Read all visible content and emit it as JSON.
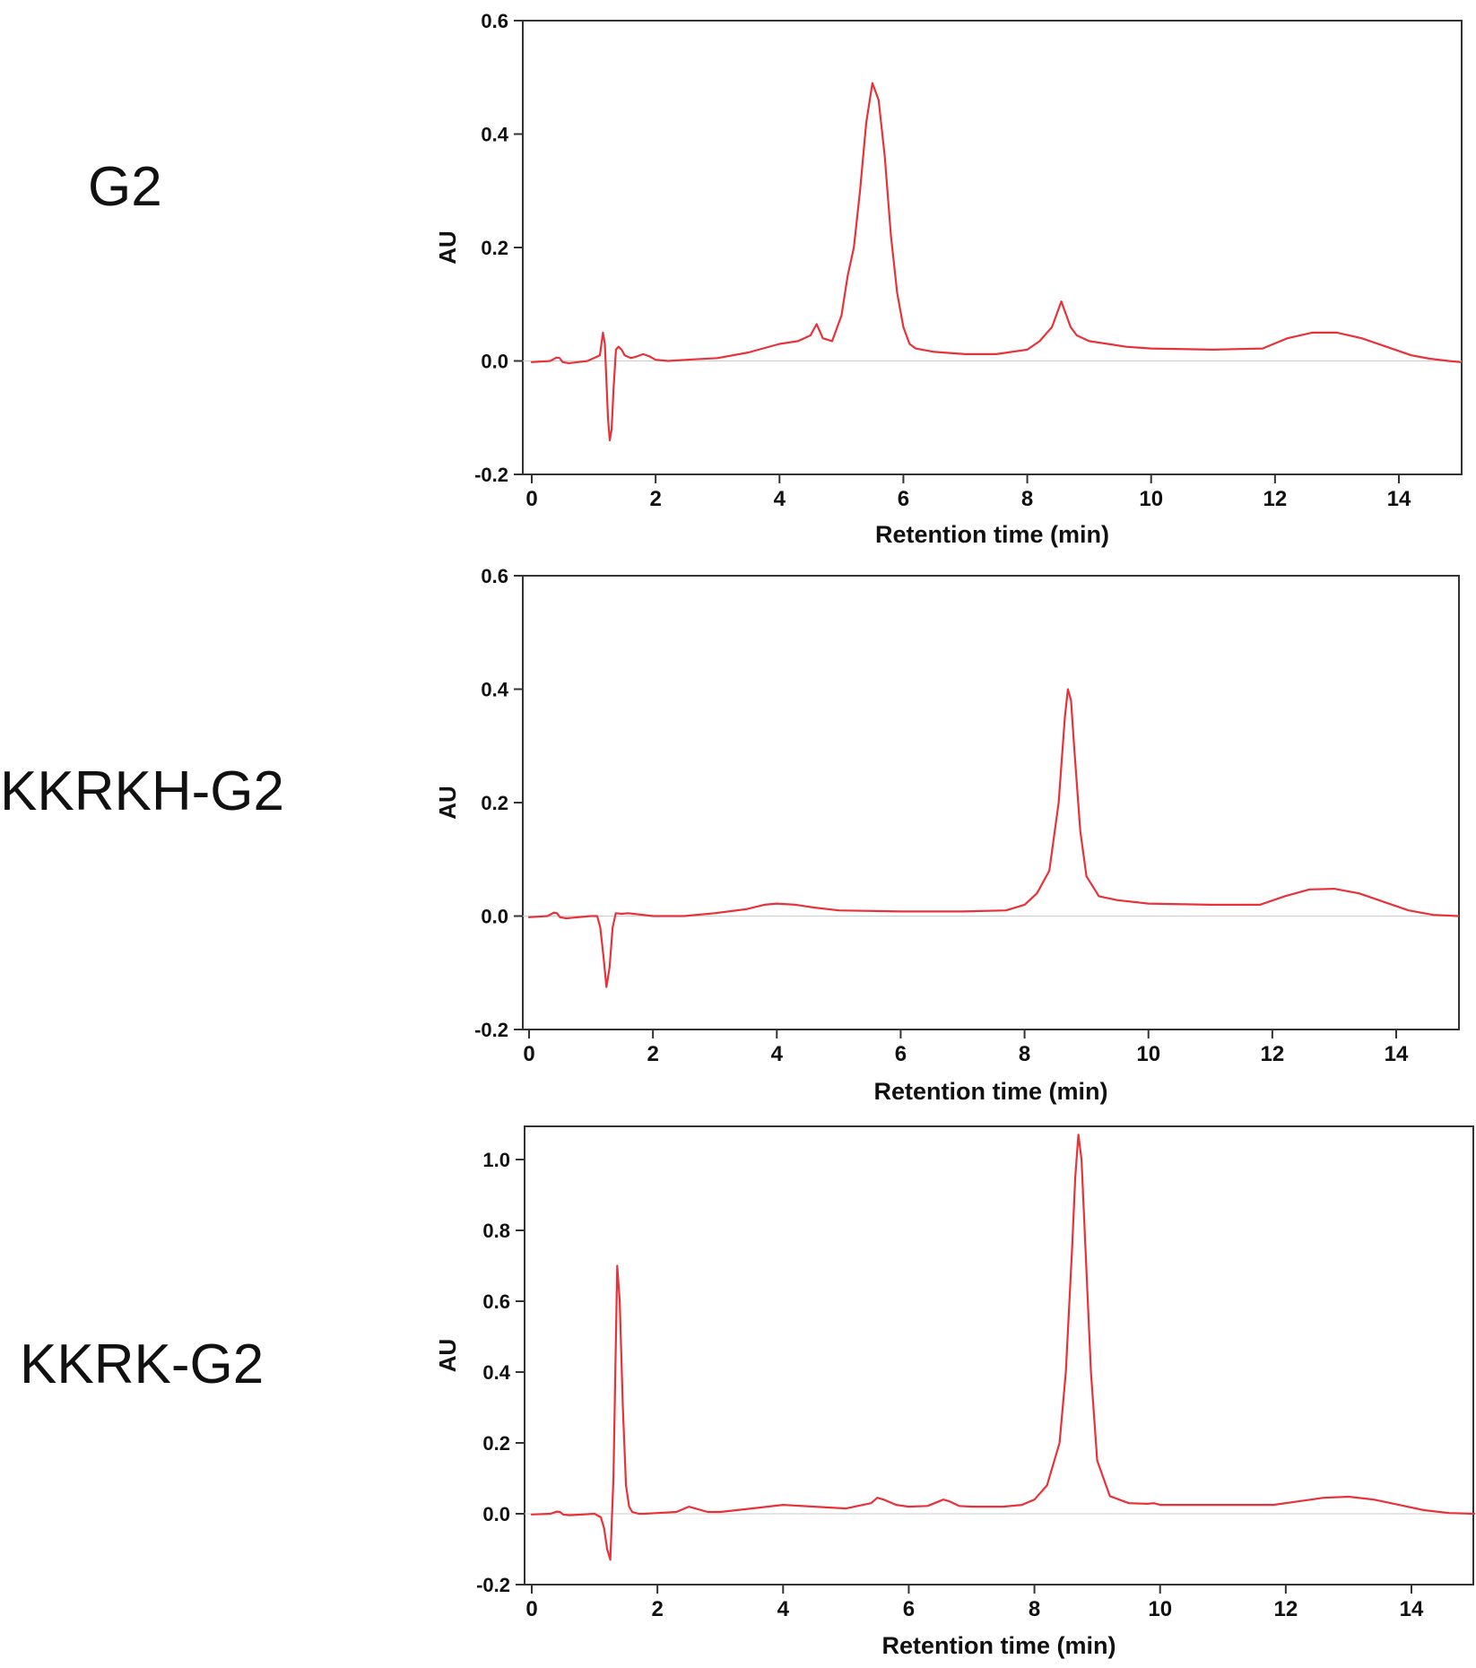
{
  "colors": {
    "trace": "#e8323a",
    "axis": "#333333",
    "text": "#111111",
    "zero_line": "#cccccc"
  },
  "panels": [
    {
      "sample_label": "G2"
    },
    {
      "sample_label": "KKRKH-G2"
    },
    {
      "sample_label": "KKRK-G2"
    }
  ],
  "chart_data": [
    {
      "type": "line",
      "xlabel": "Retention time (min)",
      "ylabel": "AU",
      "xlim": [
        0,
        15
      ],
      "ylim": [
        -0.2,
        0.6
      ],
      "xticks": [
        0,
        2,
        4,
        6,
        8,
        10,
        12,
        14
      ],
      "yticks": [
        -0.2,
        0.0,
        0.2,
        0.4,
        0.6
      ],
      "tick_labels_x": [
        "0",
        "2",
        "4",
        "6",
        "8",
        "10",
        "12",
        "14"
      ],
      "tick_labels_y": [
        "-0.2",
        "0.0",
        "0.2",
        "0.4",
        "0.6"
      ],
      "series": [
        {
          "x": [
            0.0,
            0.3,
            0.4,
            0.45,
            0.5,
            0.6,
            0.9,
            1.1,
            1.15,
            1.18,
            1.2,
            1.23,
            1.26,
            1.29,
            1.32,
            1.36,
            1.4,
            1.45,
            1.5,
            1.6,
            1.7,
            1.8,
            1.9,
            2.0,
            2.2,
            2.5,
            3.0,
            3.5,
            4.0,
            4.3,
            4.5,
            4.6,
            4.7,
            4.85,
            5.0,
            5.1,
            5.2,
            5.3,
            5.4,
            5.5,
            5.6,
            5.7,
            5.8,
            5.9,
            6.0,
            6.1,
            6.2,
            6.3,
            6.5,
            7.0,
            7.5,
            8.0,
            8.2,
            8.4,
            8.5,
            8.55,
            8.6,
            8.7,
            8.8,
            9.0,
            9.3,
            9.6,
            10.0,
            11.0,
            11.8,
            12.2,
            12.6,
            13.0,
            13.4,
            13.8,
            14.2,
            14.5,
            14.8,
            15.0
          ],
          "y": [
            -0.002,
            0.0,
            0.006,
            0.005,
            -0.002,
            -0.004,
            0.0,
            0.01,
            0.05,
            0.03,
            -0.02,
            -0.1,
            -0.14,
            -0.12,
            -0.05,
            0.02,
            0.025,
            0.02,
            0.01,
            0.005,
            0.008,
            0.012,
            0.008,
            0.002,
            0.0,
            0.002,
            0.005,
            0.015,
            0.03,
            0.035,
            0.045,
            0.065,
            0.04,
            0.035,
            0.08,
            0.15,
            0.2,
            0.3,
            0.42,
            0.49,
            0.46,
            0.36,
            0.22,
            0.12,
            0.06,
            0.03,
            0.022,
            0.02,
            0.016,
            0.012,
            0.012,
            0.02,
            0.035,
            0.06,
            0.09,
            0.105,
            0.09,
            0.06,
            0.045,
            0.035,
            0.03,
            0.025,
            0.022,
            0.02,
            0.022,
            0.04,
            0.05,
            0.05,
            0.04,
            0.025,
            0.01,
            0.004,
            0.0,
            -0.002
          ]
        }
      ]
    },
    {
      "type": "line",
      "xlabel": "Retention time (min)",
      "ylabel": "AU",
      "xlim": [
        0,
        15
      ],
      "ylim": [
        -0.2,
        0.6
      ],
      "xticks": [
        0,
        2,
        4,
        6,
        8,
        10,
        12,
        14
      ],
      "yticks": [
        -0.2,
        0.0,
        0.2,
        0.4,
        0.6
      ],
      "tick_labels_x": [
        "0",
        "2",
        "4",
        "6",
        "8",
        "10",
        "12",
        "14"
      ],
      "tick_labels_y": [
        "-0.2",
        "0.0",
        "0.2",
        "0.4",
        "0.6"
      ],
      "series": [
        {
          "x": [
            0.0,
            0.3,
            0.4,
            0.45,
            0.5,
            0.6,
            1.0,
            1.1,
            1.15,
            1.2,
            1.25,
            1.3,
            1.35,
            1.4,
            1.5,
            1.6,
            2.0,
            2.5,
            3.0,
            3.5,
            3.8,
            4.0,
            4.3,
            4.6,
            5.0,
            6.0,
            7.0,
            7.7,
            8.0,
            8.2,
            8.4,
            8.55,
            8.65,
            8.7,
            8.75,
            8.8,
            8.9,
            9.0,
            9.2,
            9.5,
            10.0,
            11.0,
            11.8,
            12.2,
            12.6,
            13.0,
            13.4,
            13.8,
            14.2,
            14.6,
            15.0
          ],
          "y": [
            -0.002,
            0.0,
            0.006,
            0.005,
            -0.002,
            -0.004,
            0.0,
            0.0,
            -0.02,
            -0.07,
            -0.125,
            -0.09,
            -0.02,
            0.005,
            0.004,
            0.005,
            0.0,
            0.0,
            0.005,
            0.012,
            0.02,
            0.022,
            0.02,
            0.015,
            0.01,
            0.008,
            0.008,
            0.01,
            0.02,
            0.04,
            0.08,
            0.2,
            0.35,
            0.4,
            0.38,
            0.3,
            0.15,
            0.07,
            0.035,
            0.028,
            0.022,
            0.02,
            0.02,
            0.035,
            0.047,
            0.048,
            0.04,
            0.025,
            0.01,
            0.002,
            0.0
          ]
        }
      ]
    },
    {
      "type": "line",
      "xlabel": "Retention time (min)",
      "ylabel": "AU",
      "xlim": [
        0,
        15
      ],
      "ylim": [
        -0.2,
        1.1
      ],
      "xticks": [
        0,
        2,
        4,
        6,
        8,
        10,
        12,
        14
      ],
      "yticks": [
        -0.2,
        0.0,
        0.2,
        0.4,
        0.6,
        0.8,
        1.0
      ],
      "tick_labels_x": [
        "0",
        "2",
        "4",
        "6",
        "8",
        "10",
        "12",
        "14"
      ],
      "tick_labels_y": [
        "-0.2",
        "0.0",
        "0.2",
        "0.4",
        "0.6",
        "0.8",
        "1.0"
      ],
      "series": [
        {
          "x": [
            0.0,
            0.3,
            0.4,
            0.45,
            0.5,
            0.6,
            1.0,
            1.1,
            1.15,
            1.2,
            1.25,
            1.3,
            1.33,
            1.36,
            1.4,
            1.45,
            1.5,
            1.55,
            1.6,
            1.7,
            1.8,
            2.0,
            2.3,
            2.5,
            2.6,
            2.8,
            3.0,
            3.5,
            4.0,
            4.5,
            5.0,
            5.4,
            5.5,
            5.6,
            5.8,
            6.0,
            6.3,
            6.55,
            6.65,
            6.8,
            7.0,
            7.5,
            7.8,
            8.0,
            8.2,
            8.4,
            8.5,
            8.6,
            8.65,
            8.7,
            8.75,
            8.8,
            8.9,
            9.0,
            9.2,
            9.5,
            9.8,
            9.9,
            10.0,
            11.0,
            11.8,
            12.2,
            12.6,
            13.0,
            13.4,
            13.8,
            14.2,
            14.6,
            15.0
          ],
          "y": [
            -0.002,
            0.0,
            0.006,
            0.005,
            -0.002,
            -0.004,
            0.0,
            -0.01,
            -0.04,
            -0.1,
            -0.13,
            0.1,
            0.4,
            0.7,
            0.6,
            0.3,
            0.08,
            0.02,
            0.005,
            0.0,
            0.0,
            0.002,
            0.005,
            0.02,
            0.015,
            0.005,
            0.005,
            0.015,
            0.025,
            0.02,
            0.015,
            0.03,
            0.045,
            0.04,
            0.025,
            0.02,
            0.022,
            0.04,
            0.035,
            0.022,
            0.02,
            0.02,
            0.025,
            0.04,
            0.08,
            0.2,
            0.4,
            0.75,
            0.95,
            1.07,
            1.0,
            0.8,
            0.4,
            0.15,
            0.05,
            0.03,
            0.028,
            0.03,
            0.025,
            0.025,
            0.025,
            0.035,
            0.045,
            0.048,
            0.04,
            0.025,
            0.01,
            0.002,
            0.0
          ]
        }
      ]
    }
  ]
}
